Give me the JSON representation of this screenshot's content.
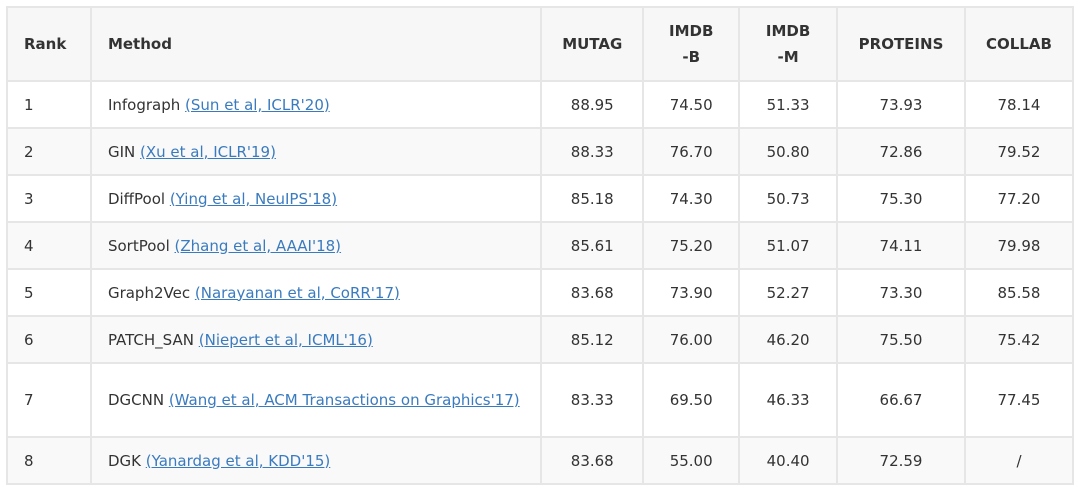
{
  "table": {
    "header": [
      "Rank",
      "Method",
      "MUTAG",
      "IMDB-B",
      "IMDB-M",
      "PROTEINS",
      "COLLAB"
    ],
    "rows": [
      {
        "rank": "1",
        "method": "Infograph",
        "citation": "(Sun et al, ICLR'20)",
        "scores": [
          "88.95",
          "74.50",
          "51.33",
          "73.93",
          "78.14"
        ]
      },
      {
        "rank": "2",
        "method": "GIN",
        "citation": "(Xu et al, ICLR'19)",
        "scores": [
          "88.33",
          "76.70",
          "50.80",
          "72.86",
          "79.52"
        ]
      },
      {
        "rank": "3",
        "method": "DiffPool",
        "citation": "(Ying et al, NeuIPS'18)",
        "scores": [
          "85.18",
          "74.30",
          "50.73",
          "75.30",
          "77.20"
        ]
      },
      {
        "rank": "4",
        "method": "SortPool",
        "citation": "(Zhang et al, AAAI'18)",
        "scores": [
          "85.61",
          "75.20",
          "51.07",
          "74.11",
          "79.98"
        ]
      },
      {
        "rank": "5",
        "method": "Graph2Vec",
        "citation": "(Narayanan et al, CoRR'17)",
        "scores": [
          "83.68",
          "73.90",
          "52.27",
          "73.30",
          "85.58"
        ]
      },
      {
        "rank": "6",
        "method": "PATCH_SAN",
        "citation": "(Niepert et al, ICML'16)",
        "scores": [
          "85.12",
          "76.00",
          "46.20",
          "75.50",
          "75.42"
        ]
      },
      {
        "rank": "7",
        "method": "DGCNN",
        "citation": "(Wang et al, ACM Transactions on Graphics'17)",
        "scores": [
          "83.33",
          "69.50",
          "46.33",
          "66.67",
          "77.45"
        ]
      },
      {
        "rank": "8",
        "method": "DGK",
        "citation": "(Yanardag et al, KDD'15)",
        "scores": [
          "83.68",
          "55.00",
          "40.40",
          "72.59",
          "/"
        ]
      }
    ]
  }
}
